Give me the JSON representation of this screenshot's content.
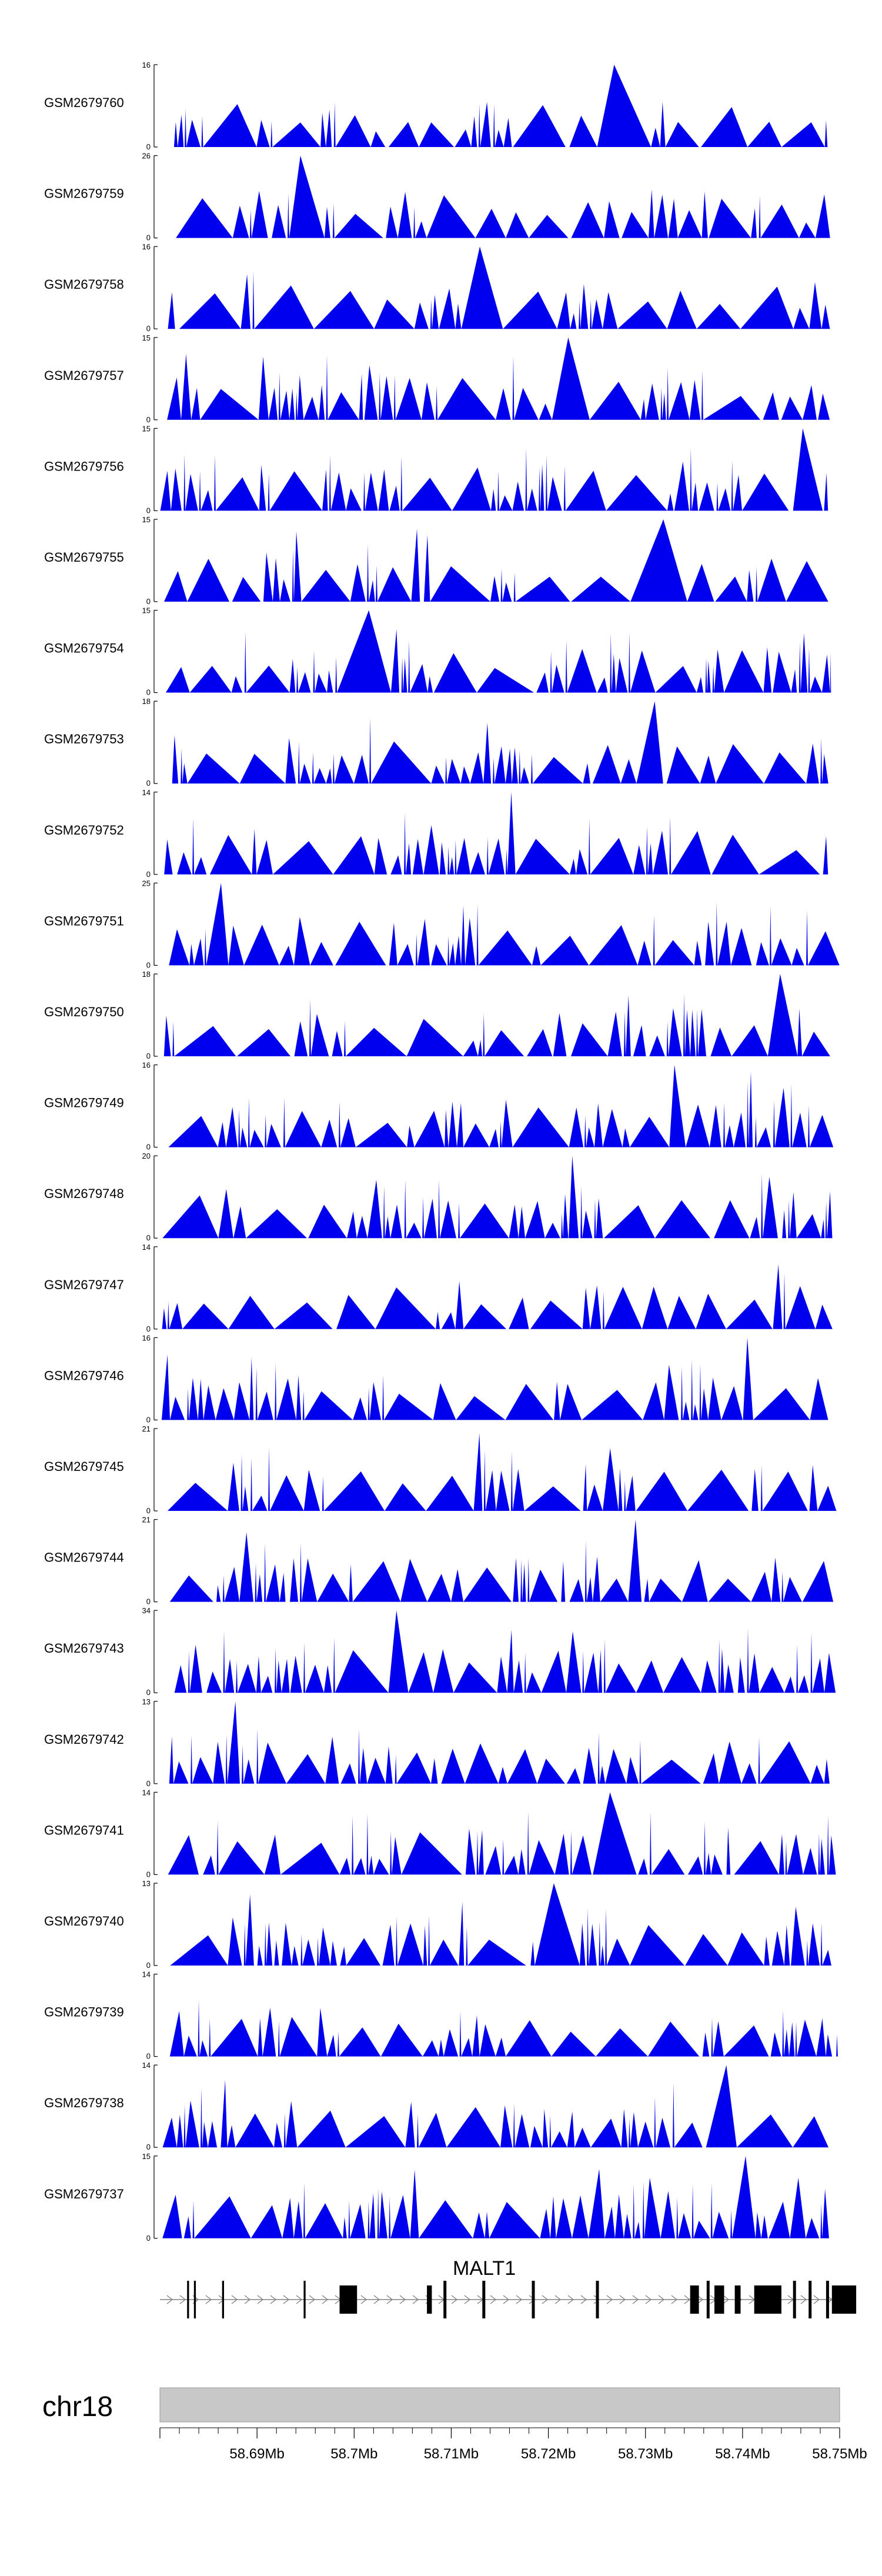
{
  "chart_data": {
    "type": "area",
    "region": {
      "chrom": "chr18",
      "start_mb": 58.68,
      "end_mb": 58.75
    },
    "tracks": [
      {
        "name": "GSM2679760",
        "ymax": 16,
        "ymin_label": "0",
        "ymax_label": "16"
      },
      {
        "name": "GSM2679759",
        "ymax": 26,
        "ymin_label": "0",
        "ymax_label": "26"
      },
      {
        "name": "GSM2679758",
        "ymax": 16,
        "ymin_label": "0",
        "ymax_label": "16"
      },
      {
        "name": "GSM2679757",
        "ymax": 15,
        "ymin_label": "0",
        "ymax_label": "15"
      },
      {
        "name": "GSM2679756",
        "ymax": 15,
        "ymin_label": "0",
        "ymax_label": "15"
      },
      {
        "name": "GSM2679755",
        "ymax": 15,
        "ymin_label": "0",
        "ymax_label": "15"
      },
      {
        "name": "GSM2679754",
        "ymax": 15,
        "ymin_label": "0",
        "ymax_label": "15"
      },
      {
        "name": "GSM2679753",
        "ymax": 18,
        "ymin_label": "0",
        "ymax_label": "18"
      },
      {
        "name": "GSM2679752",
        "ymax": 14,
        "ymin_label": "0",
        "ymax_label": "14"
      },
      {
        "name": "GSM2679751",
        "ymax": 25,
        "ymin_label": "0",
        "ymax_label": "25"
      },
      {
        "name": "GSM2679750",
        "ymax": 18,
        "ymin_label": "0",
        "ymax_label": "18"
      },
      {
        "name": "GSM2679749",
        "ymax": 16,
        "ymin_label": "0",
        "ymax_label": "16"
      },
      {
        "name": "GSM2679748",
        "ymax": 20,
        "ymin_label": "0",
        "ymax_label": "20"
      },
      {
        "name": "GSM2679747",
        "ymax": 14,
        "ymin_label": "0",
        "ymax_label": "14"
      },
      {
        "name": "GSM2679746",
        "ymax": 16,
        "ymin_label": "0",
        "ymax_label": "16"
      },
      {
        "name": "GSM2679745",
        "ymax": 21,
        "ymin_label": "0",
        "ymax_label": "21"
      },
      {
        "name": "GSM2679744",
        "ymax": 21,
        "ymin_label": "0",
        "ymax_label": "21"
      },
      {
        "name": "GSM2679743",
        "ymax": 34,
        "ymin_label": "0",
        "ymax_label": "34"
      },
      {
        "name": "GSM2679742",
        "ymax": 13,
        "ymin_label": "0",
        "ymax_label": "13"
      },
      {
        "name": "GSM2679741",
        "ymax": 14,
        "ymin_label": "0",
        "ymax_label": "14"
      },
      {
        "name": "GSM2679740",
        "ymax": 13,
        "ymin_label": "0",
        "ymax_label": "13"
      },
      {
        "name": "GSM2679739",
        "ymax": 14,
        "ymin_label": "0",
        "ymax_label": "14"
      },
      {
        "name": "GSM2679738",
        "ymax": 14,
        "ymin_label": "0",
        "ymax_label": "14"
      },
      {
        "name": "GSM2679737",
        "ymax": 15,
        "ymin_label": "0",
        "ymax_label": "15"
      }
    ],
    "gene": {
      "name": "MALT1",
      "strand": "+",
      "exons_mb": [
        [
          58.6828,
          58.683
        ],
        [
          58.6835,
          58.6837
        ],
        [
          58.6864,
          58.6866
        ],
        [
          58.6948,
          58.695
        ],
        [
          58.6985,
          58.7003
        ],
        [
          58.7075,
          58.708
        ],
        [
          58.7092,
          58.7095
        ],
        [
          58.7132,
          58.7135
        ],
        [
          58.7183,
          58.7186
        ],
        [
          58.7249,
          58.7252
        ],
        [
          58.7346,
          58.7355
        ],
        [
          58.7363,
          58.7366
        ],
        [
          58.7371,
          58.7381
        ],
        [
          58.7392,
          58.7398
        ],
        [
          58.7412,
          58.744
        ],
        [
          58.7452,
          58.7455
        ],
        [
          58.7468,
          58.7471
        ],
        [
          58.7486,
          58.7489
        ],
        [
          58.7492,
          58.7517
        ]
      ]
    },
    "chromosome": "chr18",
    "x_ticks_mb": [
      58.68,
      58.69,
      58.7,
      58.71,
      58.72,
      58.73,
      58.74,
      58.75
    ],
    "x_tick_labels": [
      "58.69Mb",
      "58.7Mb",
      "58.71Mb",
      "58.72Mb",
      "58.73Mb",
      "58.74Mb",
      "58.75Mb"
    ],
    "x_tick_label_values": [
      58.69,
      58.7,
      58.71,
      58.72,
      58.73,
      58.74,
      58.75
    ],
    "x_minor_ticks_mb": [
      58.682,
      58.684,
      58.686,
      58.688,
      58.692,
      58.694,
      58.696,
      58.698,
      58.702,
      58.704,
      58.706,
      58.708,
      58.712,
      58.714,
      58.716,
      58.718,
      58.722,
      58.724,
      58.726,
      58.728,
      58.732,
      58.734,
      58.736,
      58.738,
      58.742,
      58.744,
      58.746,
      58.748
    ],
    "colors": {
      "signal": "#0000ee",
      "ideogram": "#c8c8c8",
      "exon": "#000000"
    }
  }
}
